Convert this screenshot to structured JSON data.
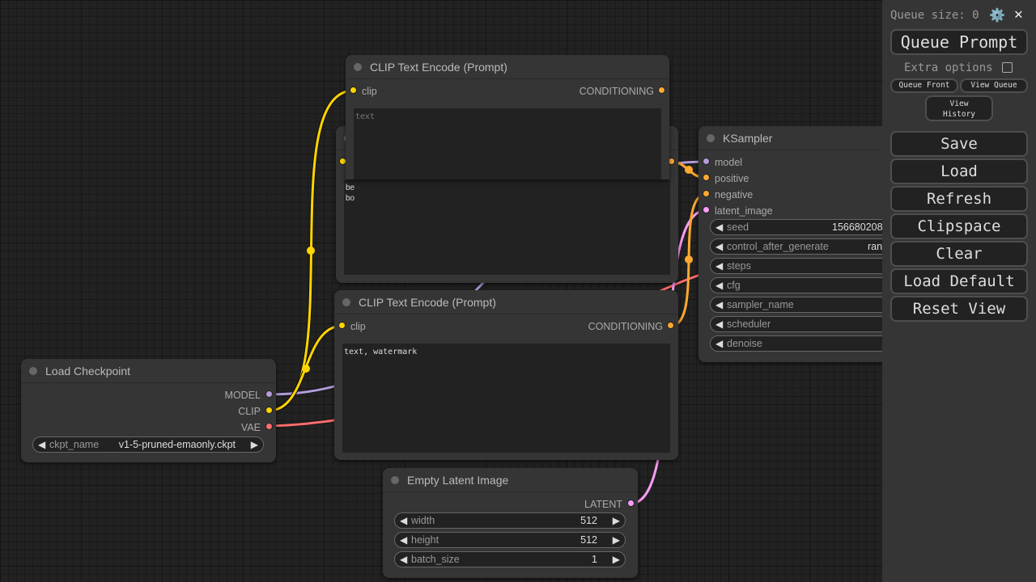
{
  "colors": {
    "model": "#b39ddb",
    "clip": "#ffd500",
    "vae": "#ff6e6e",
    "conditioning": "#ffa931",
    "latent": "#ff9cf9"
  },
  "nodes": {
    "clip_top": {
      "title": "CLIP Text Encode (Prompt)",
      "input": "clip",
      "output": "CONDITIONING",
      "placeholder": "text"
    },
    "clip_hidden": {
      "text_line1": "be",
      "text_line2": "bo"
    },
    "clip_bottom": {
      "title": "CLIP Text Encode (Prompt)",
      "input": "clip",
      "output": "CONDITIONING",
      "text": "text, watermark"
    },
    "ksampler": {
      "title": "KSampler",
      "inputs": [
        "model",
        "positive",
        "negative",
        "latent_image"
      ],
      "widgets": [
        {
          "name": "seed",
          "value": "156680208"
        },
        {
          "name": "control_after_generate",
          "value": "ran"
        },
        {
          "name": "steps",
          "value": ""
        },
        {
          "name": "cfg",
          "value": ""
        },
        {
          "name": "sampler_name",
          "value": ""
        },
        {
          "name": "scheduler",
          "value": ""
        },
        {
          "name": "denoise",
          "value": ""
        }
      ]
    },
    "checkpoint": {
      "title": "Load Checkpoint",
      "outputs": [
        "MODEL",
        "CLIP",
        "VAE"
      ],
      "widget": {
        "name": "ckpt_name",
        "value": "v1-5-pruned-emaonly.ckpt"
      }
    },
    "latent": {
      "title": "Empty Latent Image",
      "output": "LATENT",
      "widgets": [
        {
          "name": "width",
          "value": "512"
        },
        {
          "name": "height",
          "value": "512"
        },
        {
          "name": "batch_size",
          "value": "1"
        }
      ]
    }
  },
  "sidebar": {
    "queue_size": "Queue size: 0",
    "queue_prompt": "Queue Prompt",
    "extra_options": "Extra options",
    "queue_front": "Queue Front",
    "view_queue": "View Queue",
    "view_history_1": "View",
    "view_history_2": "History",
    "buttons": [
      "Save",
      "Load",
      "Refresh",
      "Clipspace",
      "Clear",
      "Load Default",
      "Reset View"
    ]
  },
  "icons": {
    "arrow_left": "◀",
    "arrow_right": "▶",
    "settings": "⚙️",
    "close": "✕"
  }
}
